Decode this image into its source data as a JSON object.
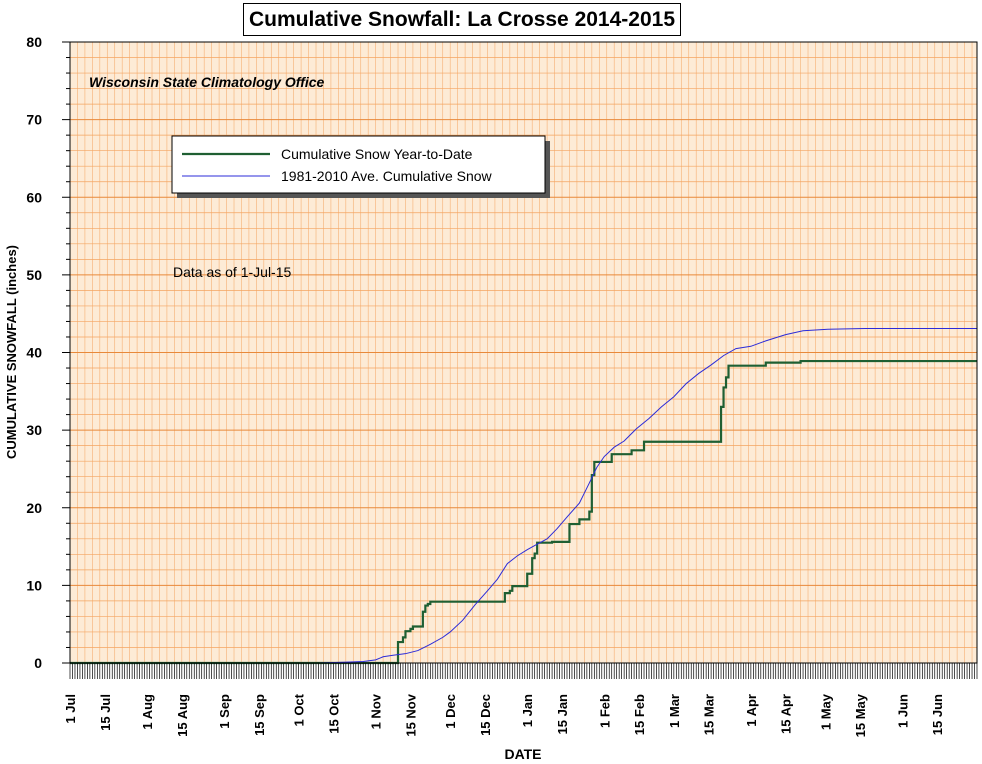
{
  "chart_data": {
    "type": "line",
    "title": "Cumulative Snowfall: La Crosse 2014-2015",
    "subtitle": "Wisconsin State Climatology Office",
    "annotation": "Data as of 1-Jul-15",
    "xlabel": "DATE",
    "ylabel": "CUMULATIVE SNOWFALL (inches)",
    "ylim": [
      0,
      80
    ],
    "yticks": [
      "0",
      "10",
      "20",
      "30",
      "40",
      "50",
      "60",
      "70",
      "80"
    ],
    "x_tick_labels": [
      {
        "label": "1 Jul",
        "day": 0
      },
      {
        "label": "15 Jul",
        "day": 14
      },
      {
        "label": "1 Aug",
        "day": 31
      },
      {
        "label": "15 Aug",
        "day": 45
      },
      {
        "label": "1 Sep",
        "day": 62
      },
      {
        "label": "15 Sep",
        "day": 76
      },
      {
        "label": "1 Oct",
        "day": 92
      },
      {
        "label": "15 Oct",
        "day": 106
      },
      {
        "label": "1 Nov",
        "day": 123
      },
      {
        "label": "15 Nov",
        "day": 137
      },
      {
        "label": "1 Dec",
        "day": 153
      },
      {
        "label": "15 Dec",
        "day": 167
      },
      {
        "label": "1 Jan",
        "day": 184
      },
      {
        "label": "15 Jan",
        "day": 198
      },
      {
        "label": "1 Feb",
        "day": 215
      },
      {
        "label": "15 Feb",
        "day": 229
      },
      {
        "label": "1 Mar",
        "day": 243
      },
      {
        "label": "15 Mar",
        "day": 257
      },
      {
        "label": "1 Apr",
        "day": 274
      },
      {
        "label": "15 Apr",
        "day": 288
      },
      {
        "label": "1 May",
        "day": 304
      },
      {
        "label": "15 May",
        "day": 318
      },
      {
        "label": "1 Jun",
        "day": 335
      },
      {
        "label": "15 Jun",
        "day": 349
      }
    ],
    "x_range_days": [
      0,
      365
    ],
    "grid": true,
    "legend_position": "top-left",
    "background_color": "#fdebd6",
    "grid_color": "#f4a460",
    "series": [
      {
        "name": "Cumulative Snow Year-to-Date",
        "color": "#1f5f32",
        "step": true,
        "points": [
          [
            0,
            0
          ],
          [
            132,
            0
          ],
          [
            132,
            2.7
          ],
          [
            134,
            2.7
          ],
          [
            134,
            3.3
          ],
          [
            135,
            3.3
          ],
          [
            135,
            4.1
          ],
          [
            137,
            4.1
          ],
          [
            137,
            4.4
          ],
          [
            138,
            4.4
          ],
          [
            138,
            4.7
          ],
          [
            142,
            4.7
          ],
          [
            142,
            6.6
          ],
          [
            143,
            6.6
          ],
          [
            143,
            7.4
          ],
          [
            144,
            7.4
          ],
          [
            144,
            7.6
          ],
          [
            145,
            7.6
          ],
          [
            145,
            7.9
          ],
          [
            175,
            7.9
          ],
          [
            175,
            9.0
          ],
          [
            177,
            9.0
          ],
          [
            177,
            9.3
          ],
          [
            178,
            9.3
          ],
          [
            178,
            9.9
          ],
          [
            184,
            9.9
          ],
          [
            184,
            11.5
          ],
          [
            186,
            11.5
          ],
          [
            186,
            13.5
          ],
          [
            187,
            13.5
          ],
          [
            187,
            14.1
          ],
          [
            188,
            14.1
          ],
          [
            188,
            15.5
          ],
          [
            194,
            15.5
          ],
          [
            194,
            15.6
          ],
          [
            201,
            15.6
          ],
          [
            201,
            17.9
          ],
          [
            205,
            17.9
          ],
          [
            205,
            18.5
          ],
          [
            209,
            18.5
          ],
          [
            209,
            19.5
          ],
          [
            210,
            19.5
          ],
          [
            210,
            24.2
          ],
          [
            211,
            24.2
          ],
          [
            211,
            25.9
          ],
          [
            218,
            25.9
          ],
          [
            218,
            26.9
          ],
          [
            226,
            26.9
          ],
          [
            226,
            27.4
          ],
          [
            231,
            27.4
          ],
          [
            231,
            28.5
          ],
          [
            262,
            28.5
          ],
          [
            262,
            33.0
          ],
          [
            263,
            33.0
          ],
          [
            263,
            35.5
          ],
          [
            264,
            35.5
          ],
          [
            264,
            36.8
          ],
          [
            265,
            36.8
          ],
          [
            265,
            38.3
          ],
          [
            280,
            38.3
          ],
          [
            280,
            38.7
          ],
          [
            294,
            38.7
          ],
          [
            294,
            38.9
          ],
          [
            365,
            38.9
          ]
        ]
      },
      {
        "name": "1981-2010 Ave. Cumulative Snow",
        "color": "#2b2bd9",
        "step": false,
        "points": [
          [
            0,
            0
          ],
          [
            100,
            0
          ],
          [
            110,
            0.1
          ],
          [
            118,
            0.2
          ],
          [
            123,
            0.4
          ],
          [
            126,
            0.8
          ],
          [
            130,
            1.0
          ],
          [
            135,
            1.2
          ],
          [
            140,
            1.6
          ],
          [
            145,
            2.4
          ],
          [
            150,
            3.3
          ],
          [
            153,
            4.0
          ],
          [
            158,
            5.5
          ],
          [
            163,
            7.5
          ],
          [
            168,
            9.3
          ],
          [
            172,
            10.8
          ],
          [
            176,
            12.8
          ],
          [
            180,
            13.8
          ],
          [
            184,
            14.6
          ],
          [
            188,
            15.3
          ],
          [
            192,
            16.0
          ],
          [
            196,
            17.3
          ],
          [
            200,
            18.8
          ],
          [
            205,
            20.6
          ],
          [
            209,
            23.2
          ],
          [
            212,
            25.2
          ],
          [
            215,
            26.6
          ],
          [
            219,
            27.8
          ],
          [
            223,
            28.6
          ],
          [
            228,
            30.2
          ],
          [
            233,
            31.5
          ],
          [
            238,
            33.0
          ],
          [
            243,
            34.3
          ],
          [
            248,
            36.0
          ],
          [
            253,
            37.3
          ],
          [
            258,
            38.4
          ],
          [
            263,
            39.6
          ],
          [
            268,
            40.5
          ],
          [
            274,
            40.8
          ],
          [
            280,
            41.5
          ],
          [
            288,
            42.3
          ],
          [
            295,
            42.8
          ],
          [
            305,
            43.0
          ],
          [
            320,
            43.1
          ],
          [
            365,
            43.1
          ]
        ]
      }
    ]
  }
}
